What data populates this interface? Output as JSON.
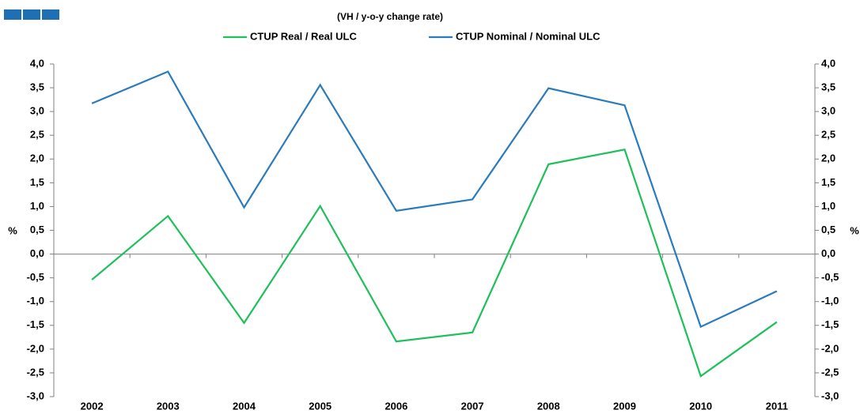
{
  "chart_data": {
    "type": "line",
    "title": "(VH / y-o-y change rate)",
    "y_label": "%",
    "y2_label": "%",
    "categories": [
      "2002",
      "2003",
      "2004",
      "2005",
      "2006",
      "2007",
      "2008",
      "2009",
      "2010",
      "2011"
    ],
    "series": [
      {
        "name": "CTUP Real / Real ULC",
        "color": "#1fbf5a",
        "values": [
          -0.54,
          0.8,
          -1.45,
          1.01,
          -1.84,
          -1.65,
          1.89,
          2.2,
          -2.57,
          -1.43
        ]
      },
      {
        "name": "CTUP Nominal / Nominal ULC",
        "color": "#2a7bbd",
        "values": [
          3.17,
          3.84,
          0.98,
          3.56,
          0.91,
          1.15,
          3.49,
          3.13,
          -1.53,
          -0.78
        ]
      }
    ],
    "ylim": [
      -3,
      4
    ],
    "yticks": [
      {
        "value": 4,
        "label": "4,0"
      },
      {
        "value": 3.5,
        "label": "3,5"
      },
      {
        "value": 3,
        "label": "3,0"
      },
      {
        "value": 2.5,
        "label": "2,5"
      },
      {
        "value": 2,
        "label": "2,0"
      },
      {
        "value": 1.5,
        "label": "1,5"
      },
      {
        "value": 1,
        "label": "1,0"
      },
      {
        "value": 0.5,
        "label": "0,5"
      },
      {
        "value": 0,
        "label": "0,0"
      },
      {
        "value": -0.5,
        "label": "-0,5"
      },
      {
        "value": -1,
        "label": "-1,0"
      },
      {
        "value": -1.5,
        "label": "-1,5"
      },
      {
        "value": -2,
        "label": "-2,0"
      },
      {
        "value": -2.5,
        "label": "-2,5"
      },
      {
        "value": -3,
        "label": "-3,0"
      }
    ],
    "y2lim": [
      -3,
      4
    ],
    "y2ticks": [
      {
        "value": 4,
        "label": "4,0"
      },
      {
        "value": 3.5,
        "label": "3,5"
      },
      {
        "value": 3,
        "label": "3,0"
      },
      {
        "value": 2.5,
        "label": "2,5"
      },
      {
        "value": 2,
        "label": "2,0"
      },
      {
        "value": 1.5,
        "label": "1,5"
      },
      {
        "value": 1,
        "label": "1,0"
      },
      {
        "value": 0.5,
        "label": "0,5"
      },
      {
        "value": 0,
        "label": "0,0"
      },
      {
        "value": -0.5,
        "label": "-0,5"
      },
      {
        "value": -1,
        "label": "-1,0"
      },
      {
        "value": -1.5,
        "label": "-1,5"
      },
      {
        "value": -2,
        "label": "-2,0"
      },
      {
        "value": -2.5,
        "label": "-2,5"
      },
      {
        "value": -3,
        "label": "-3,0"
      }
    ],
    "legend": "top"
  }
}
